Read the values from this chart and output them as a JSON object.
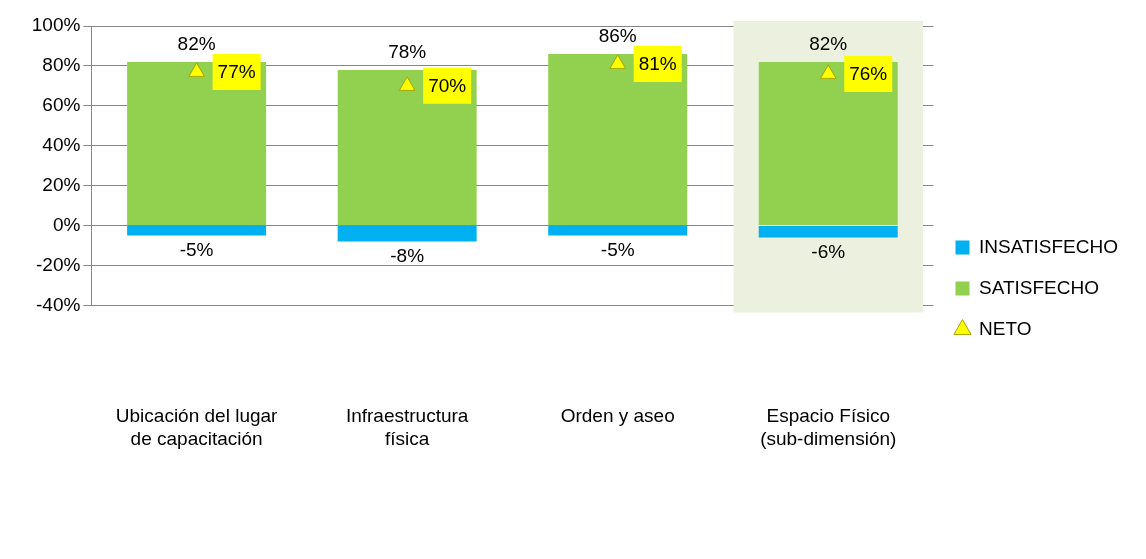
{
  "chart_data": {
    "type": "bar",
    "stacked": true,
    "categories": [
      "Ubicación del lugar de capacitación",
      "Infraestructura física",
      "Orden y aseo",
      "Espacio Físico (sub-dimensión)"
    ],
    "series": [
      {
        "name": "INSATISFECHO",
        "color": "#00b0f0",
        "values": [
          -5,
          -8,
          -5,
          -6
        ],
        "value_labels": [
          "-5%",
          "-8%",
          "-5%",
          "-6%"
        ]
      },
      {
        "name": "SATISFECHO",
        "color": "#92d050",
        "values": [
          82,
          78,
          86,
          82
        ],
        "value_labels": [
          "82%",
          "78%",
          "86%",
          "82%"
        ]
      },
      {
        "name": "NETO",
        "type": "scatter",
        "marker": "triangle",
        "color": "#ffff00",
        "values": [
          77,
          70,
          81,
          76
        ],
        "value_labels": [
          "77%",
          "70%",
          "81%",
          "76%"
        ]
      }
    ],
    "ylim": [
      -40,
      100
    ],
    "yticks": [
      {
        "value": -40,
        "label": "-40%"
      },
      {
        "value": -20,
        "label": "-20%"
      },
      {
        "value": 0,
        "label": "0%"
      },
      {
        "value": 20,
        "label": "20%"
      },
      {
        "value": 40,
        "label": "40%"
      },
      {
        "value": 60,
        "label": "60%"
      },
      {
        "value": 80,
        "label": "80%"
      },
      {
        "value": 100,
        "label": "100%"
      }
    ],
    "grid": "y",
    "legend": "right",
    "bands": [
      {
        "axis": "x",
        "from": "Espacio Físico (sub-dimensión)",
        "to": "Espacio Físico (sub-dimensión)",
        "color": "#ebf1de"
      }
    ]
  }
}
